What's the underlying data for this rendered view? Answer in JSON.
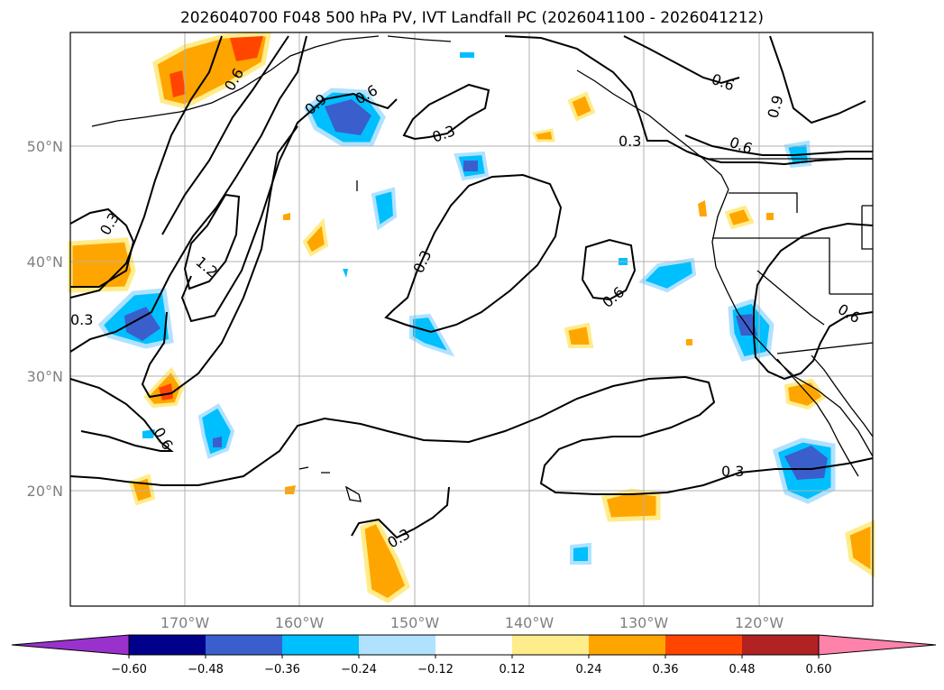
{
  "title": "2026040700 F048 500 hPa PV, IVT Landfall PC (2026041100 - 2026041212)",
  "map": {
    "lat_labels": [
      "50°N",
      "40°N",
      "30°N",
      "20°N"
    ],
    "lon_labels": [
      "170°W",
      "160°W",
      "150°W",
      "140°W",
      "130°W",
      "120°W"
    ],
    "contour_labels": [
      "0.3",
      "0.6",
      "0.9",
      "1.2",
      "0.6",
      "0.3",
      "0.3",
      "0.6",
      "0.9",
      "0.6",
      "0.3",
      "0.6",
      "0.3",
      "0.6",
      "0.3",
      "0.3",
      "0.6"
    ]
  },
  "colorbar": {
    "ticks": [
      "−0.60",
      "−0.48",
      "−0.36",
      "−0.24",
      "−0.12",
      "0.12",
      "0.24",
      "0.36",
      "0.48",
      "0.60"
    ],
    "colors": [
      "#9932cc",
      "#00008b",
      "#3a5fcd",
      "#00bfff",
      "#b0e2ff",
      "#ffffff",
      "#ffec8b",
      "#ffa500",
      "#ff4500",
      "#b22222",
      "#ff82ab"
    ]
  },
  "colors": {
    "grid": "#b0b0b0",
    "contour": "#000000",
    "label": "#808080"
  }
}
